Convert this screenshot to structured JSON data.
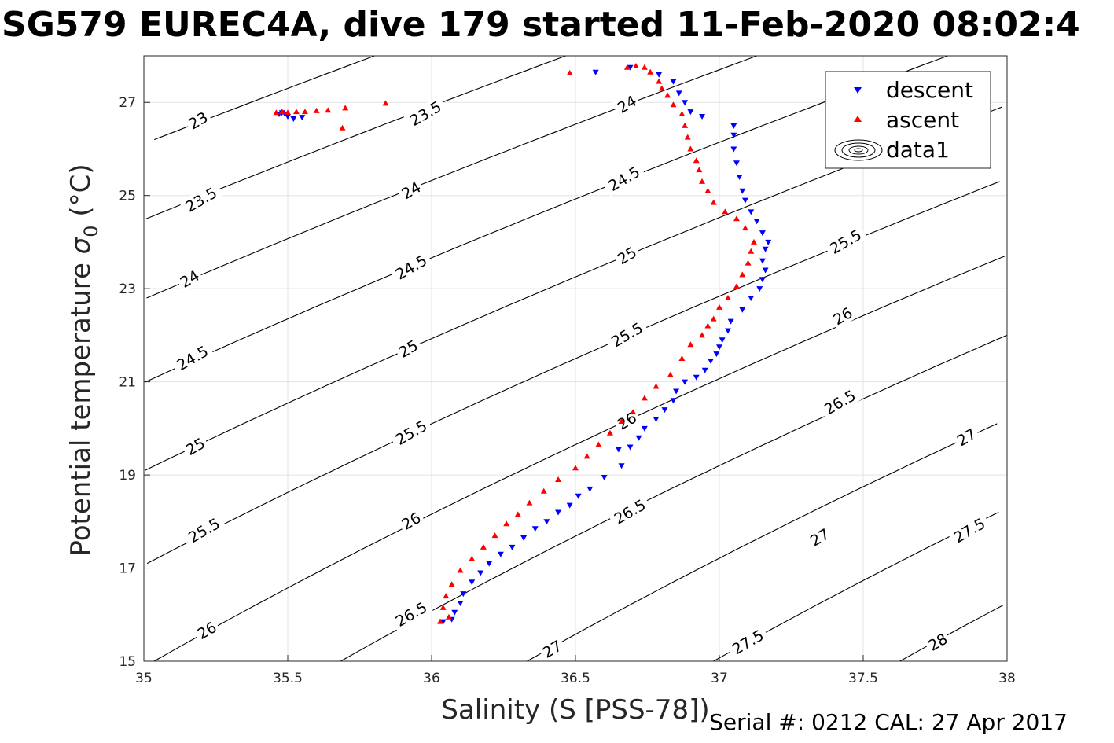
{
  "chart_data": {
    "type": "scatter",
    "title": "SG579 EUREC4A, dive 179 started 11-Feb-2020 08:02:4",
    "xlabel": "Salinity (S [PSS-78])",
    "ylabel_main": "Potential temperature ",
    "ylabel_sigma": "σ",
    "ylabel_sub": "0",
    "ylabel_unit": " (°C)",
    "xlim": [
      35,
      38
    ],
    "ylim": [
      15,
      28
    ],
    "grid": true,
    "legend_position": "top-right",
    "x_ticks": [
      35,
      35.5,
      36,
      36.5,
      37,
      37.5,
      38
    ],
    "x_tick_labels": [
      "35",
      "35.5",
      "36",
      "36.5",
      "37",
      "37.5",
      "38"
    ],
    "y_ticks": [
      15,
      17,
      19,
      21,
      23,
      25,
      27
    ],
    "y_tick_labels": [
      "15",
      "17",
      "19",
      "21",
      "23",
      "25",
      "27"
    ],
    "contour_levels": [
      23,
      23.5,
      24,
      24.5,
      25,
      25.5,
      26,
      26.5,
      27,
      27.5,
      28
    ],
    "contour_labels": [
      {
        "text": "23",
        "s": 35.19,
        "t": 26.6
      },
      {
        "text": "23.5",
        "s": 35.2,
        "t": 24.9
      },
      {
        "text": "24",
        "s": 35.16,
        "t": 23.2
      },
      {
        "text": "24.5",
        "s": 35.17,
        "t": 21.5
      },
      {
        "text": "25",
        "s": 35.18,
        "t": 19.6
      },
      {
        "text": "25.5",
        "s": 35.21,
        "t": 17.8
      },
      {
        "text": "26",
        "s": 35.22,
        "t": 15.65
      },
      {
        "text": "23.5",
        "s": 35.98,
        "t": 26.75
      },
      {
        "text": "24",
        "s": 35.93,
        "t": 25.1
      },
      {
        "text": "24.5",
        "s": 35.93,
        "t": 23.45
      },
      {
        "text": "25",
        "s": 35.92,
        "t": 21.7
      },
      {
        "text": "25.5",
        "s": 35.93,
        "t": 19.9
      },
      {
        "text": "26",
        "s": 35.93,
        "t": 18.0
      },
      {
        "text": "26.5",
        "s": 35.93,
        "t": 16.0
      },
      {
        "text": "24",
        "s": 36.68,
        "t": 26.95
      },
      {
        "text": "24.5",
        "s": 36.67,
        "t": 25.35
      },
      {
        "text": "25",
        "s": 36.68,
        "t": 23.7
      },
      {
        "text": "25.5",
        "s": 36.68,
        "t": 22.0
      },
      {
        "text": "26",
        "s": 36.68,
        "t": 20.15
      },
      {
        "text": "26.5",
        "s": 36.69,
        "t": 18.2
      },
      {
        "text": "27",
        "s": 36.42,
        "t": 15.25
      },
      {
        "text": "25.5",
        "s": 37.44,
        "t": 24.0
      },
      {
        "text": "26",
        "s": 37.43,
        "t": 22.4
      },
      {
        "text": "26.5",
        "s": 37.42,
        "t": 20.55
      },
      {
        "text": "27",
        "s": 37.35,
        "t": 17.65
      },
      {
        "text": "27.5",
        "s": 37.1,
        "t": 15.4
      },
      {
        "text": "27",
        "s": 37.86,
        "t": 19.8
      },
      {
        "text": "27.5",
        "s": 37.87,
        "t": 17.8
      },
      {
        "text": "28",
        "s": 37.76,
        "t": 15.4
      }
    ],
    "series": [
      {
        "name": "descent",
        "marker": "triangle-down",
        "color": "#0000ff",
        "points": [
          [
            35.47,
            26.75
          ],
          [
            35.49,
            26.75
          ],
          [
            35.5,
            26.7
          ],
          [
            35.52,
            26.65
          ],
          [
            35.48,
            26.78
          ],
          [
            35.55,
            26.68
          ],
          [
            36.57,
            27.65
          ],
          [
            36.69,
            27.75
          ],
          [
            36.79,
            27.6
          ],
          [
            36.84,
            27.45
          ],
          [
            36.86,
            27.2
          ],
          [
            36.88,
            27.0
          ],
          [
            36.9,
            26.8
          ],
          [
            36.94,
            26.7
          ],
          [
            37.05,
            26.5
          ],
          [
            37.05,
            26.3
          ],
          [
            37.05,
            26.0
          ],
          [
            37.06,
            25.7
          ],
          [
            37.07,
            25.4
          ],
          [
            37.08,
            25.1
          ],
          [
            37.09,
            24.9
          ],
          [
            37.11,
            24.65
          ],
          [
            37.13,
            24.45
          ],
          [
            37.15,
            24.2
          ],
          [
            37.17,
            24.0
          ],
          [
            37.16,
            23.85
          ],
          [
            37.15,
            23.6
          ],
          [
            37.16,
            23.4
          ],
          [
            37.15,
            23.2
          ],
          [
            37.14,
            23.0
          ],
          [
            37.11,
            22.8
          ],
          [
            37.08,
            22.55
          ],
          [
            37.04,
            22.3
          ],
          [
            37.03,
            22.1
          ],
          [
            37.01,
            21.9
          ],
          [
            37.0,
            21.75
          ],
          [
            36.99,
            21.6
          ],
          [
            36.97,
            21.45
          ],
          [
            36.95,
            21.25
          ],
          [
            36.92,
            21.1
          ],
          [
            36.88,
            21.0
          ],
          [
            36.85,
            20.8
          ],
          [
            36.84,
            20.6
          ],
          [
            36.81,
            20.4
          ],
          [
            36.78,
            20.2
          ],
          [
            36.74,
            20.0
          ],
          [
            36.72,
            19.8
          ],
          [
            36.69,
            19.6
          ],
          [
            36.65,
            19.55
          ],
          [
            36.66,
            19.2
          ],
          [
            36.6,
            18.95
          ],
          [
            36.55,
            18.7
          ],
          [
            36.51,
            18.55
          ],
          [
            36.48,
            18.35
          ],
          [
            36.44,
            18.2
          ],
          [
            36.4,
            18.0
          ],
          [
            36.36,
            17.85
          ],
          [
            36.32,
            17.65
          ],
          [
            36.28,
            17.45
          ],
          [
            36.24,
            17.3
          ],
          [
            36.2,
            17.1
          ],
          [
            36.17,
            16.9
          ],
          [
            36.14,
            16.7
          ],
          [
            36.11,
            16.45
          ],
          [
            36.1,
            16.25
          ],
          [
            36.08,
            16.05
          ],
          [
            36.07,
            15.9
          ],
          [
            36.04,
            15.85
          ]
        ]
      },
      {
        "name": "ascent",
        "marker": "triangle-up",
        "color": "#ff0000",
        "points": [
          [
            35.46,
            26.78
          ],
          [
            35.48,
            26.8
          ],
          [
            35.5,
            26.78
          ],
          [
            35.53,
            26.8
          ],
          [
            35.56,
            26.8
          ],
          [
            35.6,
            26.82
          ],
          [
            35.64,
            26.83
          ],
          [
            35.7,
            26.88
          ],
          [
            35.84,
            26.98
          ],
          [
            35.69,
            26.45
          ],
          [
            36.48,
            27.63
          ],
          [
            36.68,
            27.75
          ],
          [
            36.71,
            27.78
          ],
          [
            36.74,
            27.75
          ],
          [
            36.76,
            27.65
          ],
          [
            36.79,
            27.45
          ],
          [
            36.8,
            27.3
          ],
          [
            36.82,
            27.15
          ],
          [
            36.84,
            26.95
          ],
          [
            36.87,
            26.75
          ],
          [
            36.88,
            26.5
          ],
          [
            36.89,
            26.25
          ],
          [
            36.9,
            26.0
          ],
          [
            36.92,
            25.75
          ],
          [
            36.93,
            25.55
          ],
          [
            36.94,
            25.3
          ],
          [
            36.96,
            25.1
          ],
          [
            36.98,
            24.85
          ],
          [
            37.02,
            24.65
          ],
          [
            37.06,
            24.5
          ],
          [
            37.09,
            24.3
          ],
          [
            37.12,
            24.0
          ],
          [
            37.11,
            23.8
          ],
          [
            37.1,
            23.55
          ],
          [
            37.08,
            23.3
          ],
          [
            37.06,
            23.05
          ],
          [
            37.03,
            22.8
          ],
          [
            37.0,
            22.6
          ],
          [
            36.98,
            22.35
          ],
          [
            36.96,
            22.2
          ],
          [
            36.94,
            22.0
          ],
          [
            36.9,
            21.8
          ],
          [
            36.87,
            21.5
          ],
          [
            36.83,
            21.15
          ],
          [
            36.78,
            20.9
          ],
          [
            36.74,
            20.65
          ],
          [
            36.7,
            20.35
          ],
          [
            36.66,
            20.15
          ],
          [
            36.62,
            19.9
          ],
          [
            36.58,
            19.65
          ],
          [
            36.54,
            19.4
          ],
          [
            36.5,
            19.15
          ],
          [
            36.44,
            18.9
          ],
          [
            36.39,
            18.65
          ],
          [
            36.34,
            18.4
          ],
          [
            36.3,
            18.15
          ],
          [
            36.26,
            17.95
          ],
          [
            36.22,
            17.7
          ],
          [
            36.18,
            17.45
          ],
          [
            36.14,
            17.2
          ],
          [
            36.1,
            16.95
          ],
          [
            36.07,
            16.65
          ],
          [
            36.05,
            16.4
          ],
          [
            36.04,
            16.15
          ],
          [
            36.06,
            15.95
          ],
          [
            36.03,
            15.85
          ]
        ]
      }
    ],
    "legend": {
      "entries": [
        "descent",
        "ascent",
        "data1"
      ]
    }
  },
  "footer": {
    "text": "Serial #: 0212  CAL: 27 Apr 2017"
  }
}
